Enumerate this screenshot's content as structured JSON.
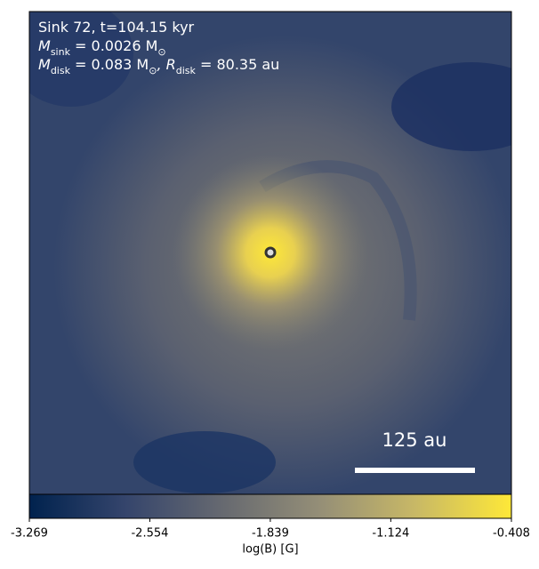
{
  "chart_data": {
    "type": "image",
    "annotations": [
      [
        {
          "text": "Sink 72, t=104.15 kyr"
        }
      ],
      [
        {
          "text": "M"
        },
        {
          "text": "sink",
          "subscript": true
        },
        {
          "text": " = 0.0026 M"
        },
        {
          "text": "⊙",
          "subscript": true
        }
      ],
      [
        {
          "text": "M"
        },
        {
          "text": "disk",
          "subscript": true
        },
        {
          "text": " = 0.083 M"
        },
        {
          "text": "⊙",
          "subscript": true
        },
        {
          "text": ", R"
        },
        {
          "text": "disk",
          "subscript": true
        },
        {
          "text": " = 80.35 au"
        }
      ]
    ],
    "scale_bar_label": "125 au",
    "colorbar": {
      "label": "log(B) [G]",
      "clim": [
        -3.269,
        -0.408
      ],
      "ticks": [
        -3.269,
        -2.554,
        -1.839,
        -1.124,
        -0.408
      ],
      "colormap": [
        "#00224e",
        "#35456c",
        "#666970",
        "#948e77",
        "#c8b866",
        "#fee838"
      ]
    }
  }
}
